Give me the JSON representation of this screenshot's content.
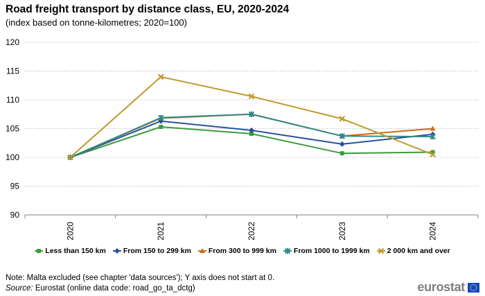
{
  "title": "Road freight transport by distance class, EU, 2020-2024",
  "subtitle": "(index based on tonne-kilometres; 2020=100)",
  "note": "Note: Malta excluded (see chapter 'data sources'); Y axis does not start at 0.",
  "source_label": "Source:",
  "source_text": " Eurostat (online data code: road_go_ta_dctg)",
  "logo_text": "eurostat",
  "chart_data": {
    "type": "line",
    "title": "Road freight transport by distance class, EU, 2020-2024",
    "subtitle": "(index based on tonne-kilometres; 2020=100)",
    "x": [
      "2020",
      "2021",
      "2022",
      "2023",
      "2024"
    ],
    "ylim": [
      90,
      120
    ],
    "yticks": [
      90,
      95,
      100,
      105,
      110,
      115,
      120
    ],
    "grid": true,
    "legend_position": "bottom",
    "series": [
      {
        "name": "Less than 150 km",
        "color": "#3a9c3a",
        "marker": "square",
        "values": [
          100,
          105.3,
          104.1,
          100.7,
          100.9
        ]
      },
      {
        "name": "From 150 to 299 km",
        "color": "#2a4fa0",
        "marker": "diamond",
        "values": [
          100,
          106.3,
          104.7,
          102.3,
          104.0
        ]
      },
      {
        "name": "From 300 to 999 km",
        "color": "#d06a15",
        "marker": "triangle",
        "values": [
          100,
          106.8,
          107.5,
          103.7,
          105.0
        ]
      },
      {
        "name": "From 1000 to 1999 km",
        "color": "#2f8a8a",
        "marker": "star",
        "values": [
          100,
          106.9,
          107.5,
          103.7,
          103.6
        ]
      },
      {
        "name": "2 000 km and over",
        "color": "#bf9a2c",
        "marker": "x",
        "values": [
          100,
          114.0,
          110.6,
          106.7,
          100.5
        ]
      }
    ]
  }
}
